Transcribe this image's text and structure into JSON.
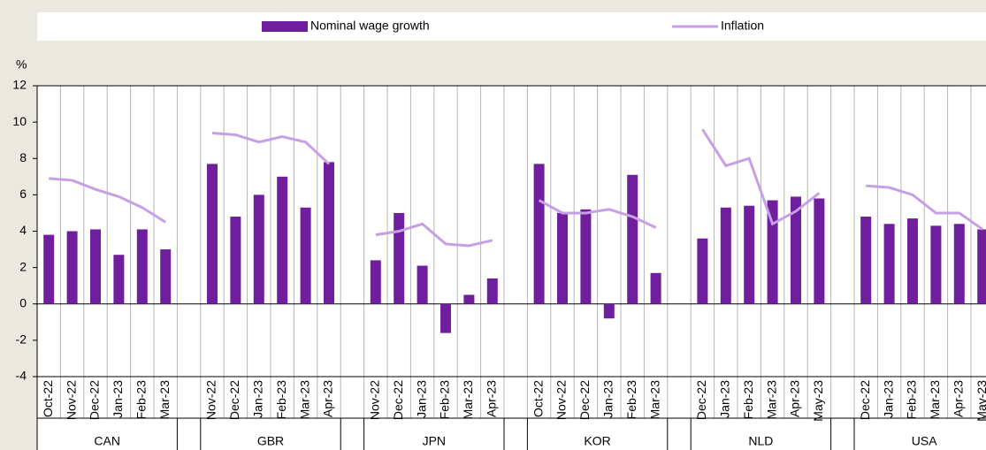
{
  "chart_data": {
    "type": "bar",
    "y_label": "%",
    "categories": [
      "Oct-22",
      "Nov-22",
      "Dec-22",
      "Jan-23",
      "Feb-23",
      "Mar-23",
      null,
      "Nov-22",
      "Dec-22",
      "Jan-23",
      "Feb-23",
      "Mar-23",
      "Apr-23",
      null,
      "Nov-22",
      "Dec-22",
      "Jan-23",
      "Feb-23",
      "Mar-23",
      "Apr-23",
      null,
      "Oct-22",
      "Nov-22",
      "Dec-22",
      "Jan-23",
      "Feb-23",
      "Mar-23",
      null,
      "Dec-22",
      "Jan-23",
      "Feb-23",
      "Mar-23",
      "Apr-23",
      "May-23",
      null,
      "Dec-22",
      "Jan-23",
      "Feb-23",
      "Mar-23",
      "Apr-23",
      "May-23"
    ],
    "groups": [
      "CAN",
      "GBR",
      "JPN",
      "KOR",
      "NLD",
      "USA"
    ],
    "series": [
      {
        "name": "Nominal wage growth",
        "type": "bar",
        "color": "#6f1f9e",
        "values": [
          3.8,
          4.0,
          4.1,
          2.7,
          4.1,
          3.0,
          null,
          7.7,
          4.8,
          6.0,
          7.0,
          5.3,
          7.8,
          null,
          2.4,
          5.0,
          2.1,
          -1.6,
          0.5,
          1.4,
          null,
          7.7,
          5.0,
          5.2,
          -0.8,
          7.1,
          1.7,
          null,
          3.6,
          5.3,
          5.4,
          5.7,
          5.9,
          5.8,
          null,
          4.8,
          4.4,
          4.7,
          4.3,
          4.4,
          4.1
        ]
      },
      {
        "name": "Inflation",
        "type": "line",
        "color": "#c79fe6",
        "values": [
          6.9,
          6.8,
          6.3,
          5.9,
          5.3,
          4.5,
          null,
          9.4,
          9.3,
          8.9,
          9.2,
          8.9,
          7.7,
          null,
          3.8,
          4.0,
          4.4,
          3.3,
          3.2,
          3.5,
          null,
          5.7,
          5.0,
          5.0,
          5.2,
          4.8,
          4.2,
          null,
          9.6,
          7.6,
          8.0,
          4.4,
          5.1,
          6.1,
          null,
          6.5,
          6.4,
          6.0,
          5.0,
          5.0,
          4.1
        ]
      }
    ],
    "ylim": [
      -4,
      12
    ],
    "yticks": [
      -4,
      -2,
      0,
      2,
      4,
      6,
      8,
      10,
      12
    ]
  }
}
